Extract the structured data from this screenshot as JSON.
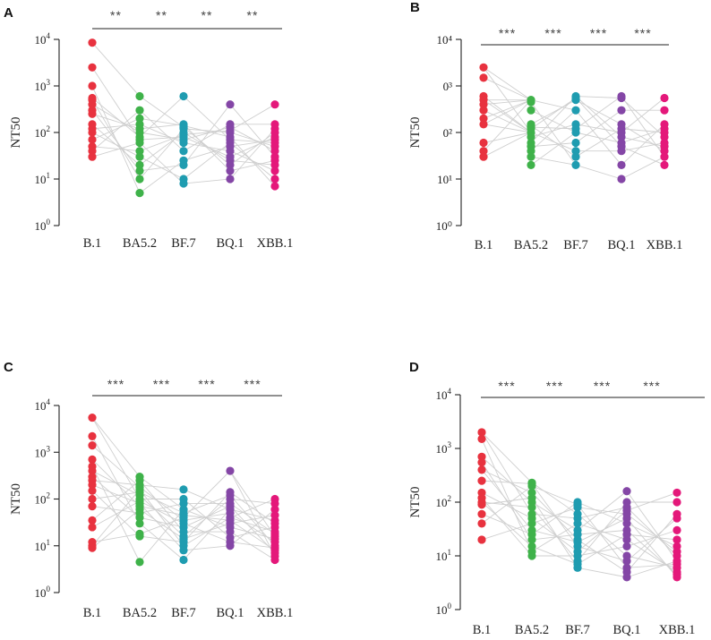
{
  "figure": {
    "ylabel": "NT50",
    "categories": [
      "B.1",
      "BA5.2",
      "BF.7",
      "BQ.1",
      "XBB.1"
    ],
    "colors": {
      "B.1": "#e8323f",
      "BA5.2": "#3fb24a",
      "BF.7": "#1f9cb0",
      "BQ.1": "#8446a6",
      "XBB.1": "#e4187a"
    },
    "pair_line_color": "#cfcfcf",
    "y_tick_labels": [
      {
        "base": "10",
        "exp": "0"
      },
      {
        "base": "10",
        "exp": "1"
      },
      {
        "base": "10",
        "exp": "2"
      },
      {
        "base": "10",
        "exp": "3"
      },
      {
        "base": "10",
        "exp": "4"
      }
    ]
  },
  "chart_data": [
    {
      "panel": "A",
      "type": "scatter",
      "ylabel": "NT50",
      "yscale": "log",
      "ylim": [
        1,
        10000
      ],
      "y_tick_format": "superscript",
      "categories": [
        "B.1",
        "BA5.2",
        "BF.7",
        "BQ.1",
        "XBB.1"
      ],
      "significance": [
        "**",
        "**",
        "**",
        "**"
      ],
      "series": [
        {
          "name": "B.1",
          "values": [
            8500,
            2500,
            1000,
            550,
            500,
            400,
            300,
            250,
            150,
            120,
            100,
            70,
            50,
            40,
            30
          ]
        },
        {
          "name": "BA5.2",
          "values": [
            600,
            300,
            200,
            150,
            120,
            100,
            80,
            70,
            60,
            40,
            30,
            20,
            15,
            10,
            5
          ]
        },
        {
          "name": "BF.7",
          "values": [
            600,
            150,
            140,
            130,
            120,
            100,
            90,
            80,
            70,
            60,
            40,
            25,
            20,
            10,
            8
          ]
        },
        {
          "name": "BQ.1",
          "values": [
            400,
            150,
            130,
            110,
            100,
            80,
            70,
            60,
            50,
            40,
            30,
            25,
            20,
            15,
            10
          ]
        },
        {
          "name": "XBB.1",
          "values": [
            400,
            150,
            120,
            100,
            80,
            70,
            60,
            50,
            40,
            30,
            25,
            20,
            15,
            10,
            7
          ]
        }
      ]
    },
    {
      "panel": "B",
      "type": "scatter",
      "ylabel": "NT50",
      "yscale": "log",
      "ylim": [
        1,
        10000
      ],
      "y_tick_format": "plain",
      "y_tick_labels": [
        "10⁰",
        "10¹",
        "0²",
        "0³",
        "10⁴"
      ],
      "categories": [
        "B.1",
        "BA5.2",
        "BF.7",
        "BQ.1",
        "XBB.1"
      ],
      "significance": [
        "***",
        "***",
        "***",
        "***"
      ],
      "series": [
        {
          "name": "B.1",
          "values": [
            2500,
            1500,
            600,
            500,
            400,
            300,
            200,
            150,
            60,
            40,
            30
          ]
        },
        {
          "name": "BA5.2",
          "values": [
            500,
            450,
            300,
            150,
            140,
            130,
            120,
            100,
            80,
            60,
            50,
            40,
            30,
            20
          ]
        },
        {
          "name": "BF.7",
          "values": [
            600,
            550,
            500,
            300,
            150,
            120,
            100,
            60,
            40,
            30,
            20
          ]
        },
        {
          "name": "BQ.1",
          "values": [
            600,
            550,
            300,
            150,
            120,
            100,
            80,
            60,
            50,
            40,
            20,
            10
          ]
        },
        {
          "name": "XBB.1",
          "values": [
            550,
            300,
            150,
            120,
            100,
            80,
            60,
            50,
            40,
            30,
            20
          ]
        }
      ]
    },
    {
      "panel": "C",
      "type": "scatter",
      "ylabel": "NT50",
      "yscale": "log",
      "ylim": [
        1,
        10000
      ],
      "y_tick_format": "superscript",
      "categories": [
        "B.1",
        "BA5.2",
        "BF.7",
        "BQ.1",
        "XBB.1"
      ],
      "significance": [
        "***",
        "***",
        "***",
        "***"
      ],
      "series": [
        {
          "name": "B.1",
          "values": [
            5500,
            2200,
            1400,
            700,
            500,
            400,
            300,
            250,
            200,
            150,
            100,
            70,
            35,
            25,
            12,
            10,
            9
          ]
        },
        {
          "name": "BA5.2",
          "values": [
            300,
            250,
            200,
            180,
            160,
            140,
            120,
            100,
            90,
            80,
            70,
            60,
            50,
            40,
            30,
            18,
            16,
            4.5
          ]
        },
        {
          "name": "BF.7",
          "values": [
            160,
            100,
            80,
            60,
            50,
            45,
            40,
            35,
            30,
            25,
            20,
            16,
            14,
            12,
            10,
            8,
            5
          ]
        },
        {
          "name": "BQ.1",
          "values": [
            400,
            140,
            120,
            100,
            80,
            70,
            60,
            50,
            40,
            35,
            30,
            25,
            20,
            15,
            12,
            10
          ]
        },
        {
          "name": "XBB.1",
          "values": [
            100,
            80,
            60,
            45,
            35,
            30,
            25,
            20,
            18,
            16,
            14,
            12,
            10,
            9,
            8,
            7,
            6,
            5
          ]
        }
      ]
    },
    {
      "panel": "D",
      "type": "scatter",
      "ylabel": "NT50",
      "yscale": "log",
      "ylim": [
        1,
        10000
      ],
      "y_tick_format": "superscript",
      "categories": [
        "B.1",
        "BA5.2",
        "BF.7",
        "BQ.1",
        "XBB.1"
      ],
      "significance": [
        "***",
        "***",
        "***",
        "***"
      ],
      "series": [
        {
          "name": "B.1",
          "values": [
            2000,
            1500,
            700,
            550,
            400,
            250,
            150,
            120,
            100,
            90,
            60,
            40,
            20
          ]
        },
        {
          "name": "BA5.2",
          "values": [
            230,
            220,
            200,
            150,
            120,
            100,
            80,
            60,
            50,
            40,
            30,
            25,
            20,
            15,
            12,
            10
          ]
        },
        {
          "name": "BF.7",
          "values": [
            100,
            90,
            80,
            60,
            50,
            40,
            30,
            25,
            20,
            18,
            15,
            12,
            10,
            8,
            7,
            6
          ]
        },
        {
          "name": "BQ.1",
          "values": [
            160,
            100,
            80,
            70,
            60,
            50,
            40,
            30,
            25,
            20,
            15,
            10,
            8,
            6,
            5,
            4
          ]
        },
        {
          "name": "XBB.1",
          "values": [
            150,
            100,
            60,
            50,
            30,
            20,
            15,
            12,
            10,
            8,
            7,
            6,
            5,
            4.5,
            4
          ]
        }
      ]
    }
  ]
}
